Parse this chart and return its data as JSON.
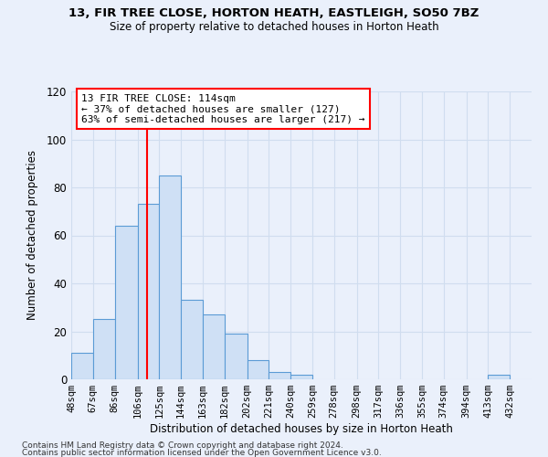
{
  "title1": "13, FIR TREE CLOSE, HORTON HEATH, EASTLEIGH, SO50 7BZ",
  "title2": "Size of property relative to detached houses in Horton Heath",
  "xlabel": "Distribution of detached houses by size in Horton Heath",
  "ylabel": "Number of detached properties",
  "bin_labels": [
    "48sqm",
    "67sqm",
    "86sqm",
    "106sqm",
    "125sqm",
    "144sqm",
    "163sqm",
    "182sqm",
    "202sqm",
    "221sqm",
    "240sqm",
    "259sqm",
    "278sqm",
    "298sqm",
    "317sqm",
    "336sqm",
    "355sqm",
    "374sqm",
    "394sqm",
    "413sqm",
    "432sqm"
  ],
  "bar_values": [
    11,
    25,
    64,
    73,
    85,
    33,
    27,
    19,
    8,
    3,
    2,
    0,
    0,
    0,
    0,
    0,
    0,
    0,
    0,
    2,
    0
  ],
  "bar_color": "#cfe0f5",
  "bar_edge_color": "#5b9bd5",
  "property_line_x": 114,
  "property_line_label": "13 FIR TREE CLOSE: 114sqm",
  "annotation_line2": "← 37% of detached houses are smaller (127)",
  "annotation_line3": "63% of semi-detached houses are larger (217) →",
  "annotation_box_color": "white",
  "annotation_border_color": "red",
  "vline_color": "red",
  "ylim": [
    0,
    120
  ],
  "yticks": [
    0,
    20,
    40,
    60,
    80,
    100,
    120
  ],
  "label_vals": [
    48,
    67,
    86,
    106,
    125,
    144,
    163,
    182,
    202,
    221,
    240,
    259,
    278,
    298,
    317,
    336,
    355,
    374,
    394,
    413,
    432
  ],
  "last_edge": 451,
  "footer1": "Contains HM Land Registry data © Crown copyright and database right 2024.",
  "footer2": "Contains public sector information licensed under the Open Government Licence v3.0.",
  "bg_color": "#eaf0fb",
  "grid_color": "#d0ddef"
}
